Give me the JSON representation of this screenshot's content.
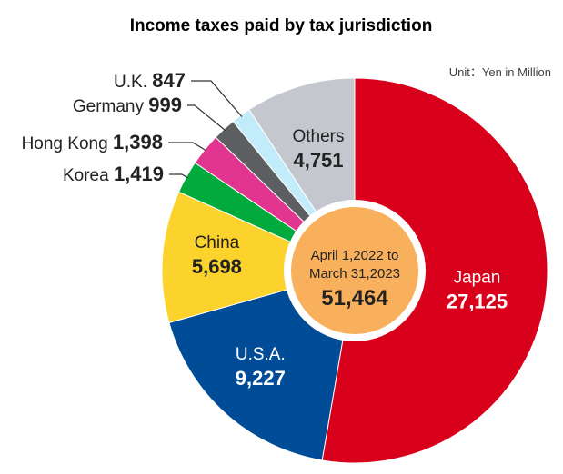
{
  "chart_data": {
    "type": "pie",
    "variant": "donut",
    "title": "Income taxes paid by tax jurisdiction",
    "unit_label": "Unit：Yen in Million",
    "center": {
      "line1": "April 1,2022 to",
      "line2": "March 31,2023",
      "total": "51,464"
    },
    "legend": "none",
    "slices": [
      {
        "name": "Japan",
        "value": 27125,
        "value_label": "27,125",
        "color": "#d9001b",
        "label_style": "inside",
        "text_color": "#ffffff"
      },
      {
        "name": "U.S.A.",
        "value": 9227,
        "value_label": "9,227",
        "color": "#004c97",
        "label_style": "inside",
        "text_color": "#ffffff"
      },
      {
        "name": "China",
        "value": 5698,
        "value_label": "5,698",
        "color": "#fcd22d",
        "label_style": "inside",
        "text_color": "#222222"
      },
      {
        "name": "Korea",
        "value": 1419,
        "value_label": "1,419",
        "color": "#00aa3c",
        "label_style": "outside"
      },
      {
        "name": "Hong Kong",
        "value": 1398,
        "value_label": "1,398",
        "color": "#e2358f",
        "label_style": "outside"
      },
      {
        "name": "Germany",
        "value": 999,
        "value_label": "999",
        "color": "#5c5e61",
        "label_style": "outside"
      },
      {
        "name": "U.K.",
        "value": 847,
        "value_label": "847",
        "color": "#c2ecfa",
        "label_style": "outside"
      },
      {
        "name": "Others",
        "value": 4751,
        "value_label": "4,751",
        "color": "#c4c8ce",
        "label_style": "inside",
        "text_color": "#222222"
      }
    ]
  }
}
